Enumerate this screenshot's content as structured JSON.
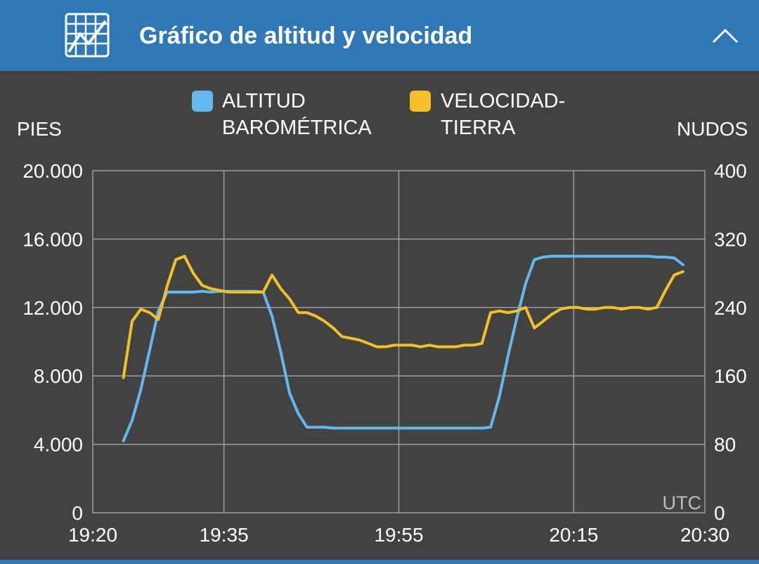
{
  "header": {
    "title": "Gráfico de altitud y velocidad",
    "icon": "chart-icon",
    "collapse_icon": "chevron-up-icon"
  },
  "colors": {
    "header_bg": "#2f78b5",
    "plot_bg": "#424242",
    "altitude": "#62b8ef",
    "speed": "#f5bf27",
    "grid": "#9e9e9e",
    "text": "#ffffff"
  },
  "chart_data": {
    "type": "line",
    "x_axis": {
      "label": "UTC",
      "ticks": [
        "19:20",
        "19:35",
        "19:55",
        "20:15",
        "20:30"
      ],
      "tick_minutes": [
        0,
        15,
        35,
        55,
        70
      ],
      "range_minutes": [
        0,
        70
      ]
    },
    "y_left": {
      "label": "PIES",
      "ticks": [
        "0",
        "4.000",
        "8.000",
        "12.000",
        "16.000",
        "20.000"
      ],
      "range": [
        0,
        20000
      ]
    },
    "y_right": {
      "label": "NUDOS",
      "ticks": [
        "0",
        "80",
        "160",
        "240",
        "320",
        "400"
      ],
      "range": [
        0,
        400
      ]
    },
    "grid": true,
    "legend_position": "top",
    "series": [
      {
        "name": "ALTITUD\nBAROMÉTRICA",
        "axis": "left",
        "x": [
          3.5,
          4.5,
          5.5,
          6.5,
          7.5,
          8.5,
          9.5,
          10.5,
          11.5,
          12.5,
          13.5,
          14.5,
          15.5,
          16.5,
          17.5,
          18.5,
          19.5,
          20.5,
          21.5,
          22.5,
          23.5,
          24.5,
          25.5,
          26.5,
          27.5,
          28.5,
          29.5,
          30.5,
          31.5,
          32.5,
          33.5,
          34.5,
          35.5,
          36.5,
          37.5,
          38.5,
          39.5,
          40.5,
          41.5,
          42.5,
          43.5,
          44.5,
          45.5,
          46.5,
          47.5,
          48.5,
          49.5,
          50.5,
          51.5,
          52.5,
          53.5,
          54.5,
          55.5,
          56.5,
          57.5,
          58.5,
          59.5,
          60.5,
          61.5,
          62.5,
          63.5,
          64.5,
          65.5,
          66.5,
          67.5
        ],
        "values": [
          4200,
          5400,
          7200,
          9500,
          11800,
          12900,
          12900,
          12900,
          12900,
          12950,
          12900,
          12950,
          12950,
          12950,
          12950,
          12950,
          12900,
          11500,
          9400,
          7000,
          5800,
          5000,
          5000,
          5000,
          4950,
          4950,
          4950,
          4950,
          4950,
          4950,
          4950,
          4950,
          4950,
          4950,
          4950,
          4950,
          4950,
          4950,
          4950,
          4950,
          4950,
          4950,
          5000,
          6800,
          9200,
          11400,
          13400,
          14800,
          14950,
          15000,
          15000,
          15000,
          15000,
          15000,
          15000,
          15000,
          15000,
          15000,
          15000,
          15000,
          15000,
          14950,
          14950,
          14900,
          14500
        ]
      },
      {
        "name": "VELOCIDAD-\nTIERRA",
        "axis": "right",
        "x": [
          3.5,
          4.5,
          5.5,
          6.5,
          7.5,
          8.5,
          9.5,
          10.5,
          11.5,
          12.5,
          13.5,
          14.5,
          15.5,
          16.5,
          17.5,
          18.5,
          19.5,
          20.5,
          21.5,
          22.5,
          23.5,
          24.5,
          25.5,
          26.5,
          27.5,
          28.5,
          29.5,
          30.5,
          31.5,
          32.5,
          33.5,
          34.5,
          35.5,
          36.5,
          37.5,
          38.5,
          39.5,
          40.5,
          41.5,
          42.5,
          43.5,
          44.5,
          45.5,
          46.5,
          47.5,
          48.5,
          49.5,
          50.5,
          51.5,
          52.5,
          53.5,
          54.5,
          55.5,
          56.5,
          57.5,
          58.5,
          59.5,
          60.5,
          61.5,
          62.5,
          63.5,
          64.5,
          65.5,
          66.5,
          67.5
        ],
        "values": [
          158,
          224,
          238,
          234,
          226,
          265,
          296,
          300,
          280,
          266,
          262,
          260,
          258,
          258,
          258,
          258,
          258,
          278,
          262,
          250,
          234,
          234,
          230,
          224,
          216,
          206,
          204,
          202,
          198,
          194,
          194,
          196,
          196,
          196,
          194,
          196,
          194,
          194,
          194,
          196,
          196,
          198,
          234,
          236,
          234,
          236,
          240,
          216,
          224,
          232,
          238,
          240,
          240,
          238,
          238,
          240,
          240,
          238,
          240,
          240,
          238,
          240,
          260,
          278,
          282
        ]
      }
    ]
  },
  "legend": {
    "altitude": "ALTITUD\nBAROMÉTRICA",
    "speed": "VELOCIDAD-\nTIERRA"
  },
  "axes_labels": {
    "left": "PIES",
    "right": "NUDOS",
    "corner": "UTC"
  }
}
